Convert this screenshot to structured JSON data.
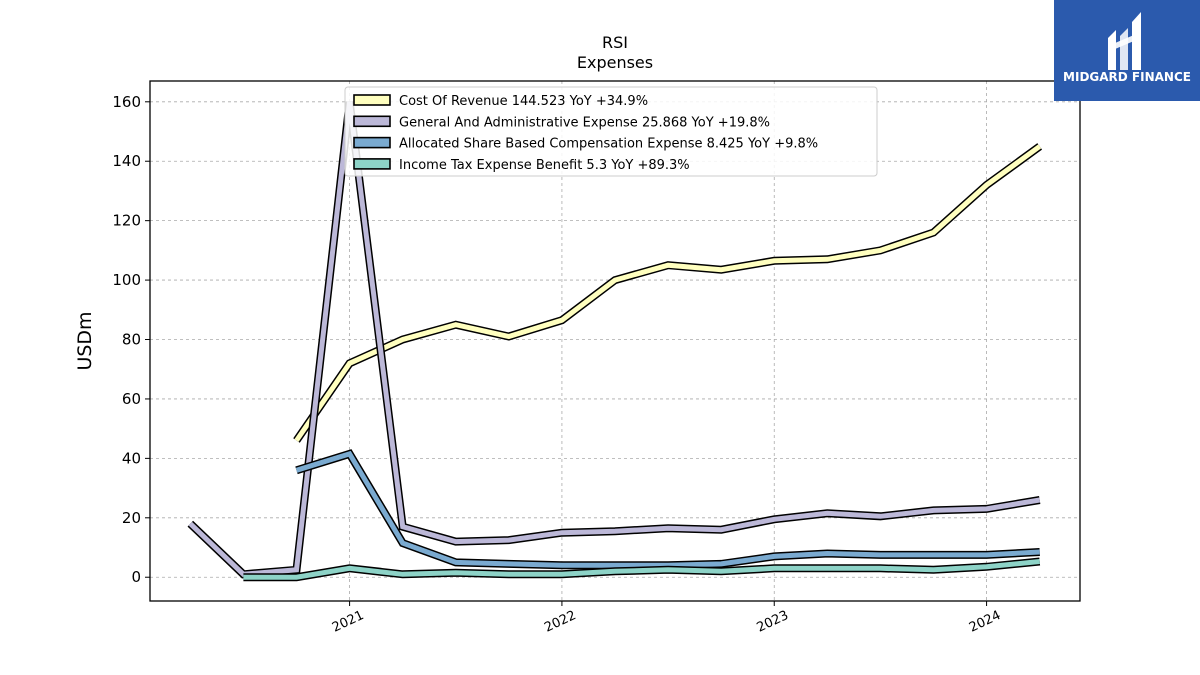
{
  "chart_data": {
    "type": "line",
    "title": "RSI",
    "subtitle": "Expenses",
    "ylabel": "USDm",
    "xlabel": "",
    "ylim": [
      -8,
      167
    ],
    "xlim": [
      2020.06,
      2024.44
    ],
    "yticks": [
      0,
      20,
      40,
      60,
      80,
      100,
      120,
      140,
      160
    ],
    "xticks": [
      2021,
      2022,
      2023,
      2024
    ],
    "grid": true,
    "legend_position": "top-center",
    "series": [
      {
        "name": "Cost Of Revenue",
        "legend_label": "Cost Of Revenue  144.523 YoY +34.9%",
        "color": "#ffffbf",
        "x": [
          2020.75,
          2021.0,
          2021.25,
          2021.5,
          2021.75,
          2022.0,
          2022.25,
          2022.5,
          2022.75,
          2023.0,
          2023.25,
          2023.5,
          2023.75,
          2024.0,
          2024.25
        ],
        "y": [
          46,
          72,
          80,
          85,
          81,
          86.5,
          100,
          105,
          103.5,
          106.5,
          107,
          110,
          116,
          132,
          145
        ]
      },
      {
        "name": "General And Administrative Expense",
        "legend_label": "General And Administrative Expense  25.868 YoY +19.8%",
        "color": "#bcb8d8",
        "x": [
          2020.25,
          2020.5,
          2020.75,
          2021.0,
          2021.25,
          2021.5,
          2021.75,
          2022.0,
          2022.25,
          2022.5,
          2022.75,
          2023.0,
          2023.25,
          2023.5,
          2023.75,
          2024.0,
          2024.25
        ],
        "y": [
          18,
          1,
          2.5,
          160,
          17,
          12,
          12.5,
          15,
          15.5,
          16.5,
          16,
          19.5,
          21.5,
          20.5,
          22.5,
          23,
          26
        ]
      },
      {
        "name": "Allocated Share Based Compensation Expense",
        "legend_label": "Allocated Share Based Compensation Expense  8.425 YoY +9.8%",
        "color": "#7aaad0",
        "x": [
          2020.75,
          2021.0,
          2021.25,
          2021.5,
          2021.75,
          2022.0,
          2022.25,
          2022.5,
          2022.75,
          2023.0,
          2023.25,
          2023.5,
          2023.75,
          2024.0,
          2024.25
        ],
        "y": [
          36,
          41.5,
          11.5,
          5,
          4.5,
          4,
          4,
          4,
          4.5,
          7,
          8,
          7.5,
          7.5,
          7.5,
          8.5
        ]
      },
      {
        "name": "Income Tax Expense Benefit",
        "legend_label": "Income Tax Expense Benefit  5.3 YoY +89.3%",
        "color": "#8dd3c7",
        "x": [
          2020.5,
          2020.75,
          2021.0,
          2021.25,
          2021.5,
          2021.75,
          2022.0,
          2022.25,
          2022.5,
          2022.75,
          2023.0,
          2023.25,
          2023.5,
          2023.75,
          2024.0,
          2024.25
        ],
        "y": [
          0,
          0,
          3,
          1,
          1.5,
          1,
          1,
          2,
          2.5,
          2,
          3,
          3,
          3,
          2.5,
          3.5,
          5.3
        ]
      }
    ]
  },
  "logo": {
    "text": "MIDGARD FINANCE",
    "background": "#2b5aad"
  }
}
